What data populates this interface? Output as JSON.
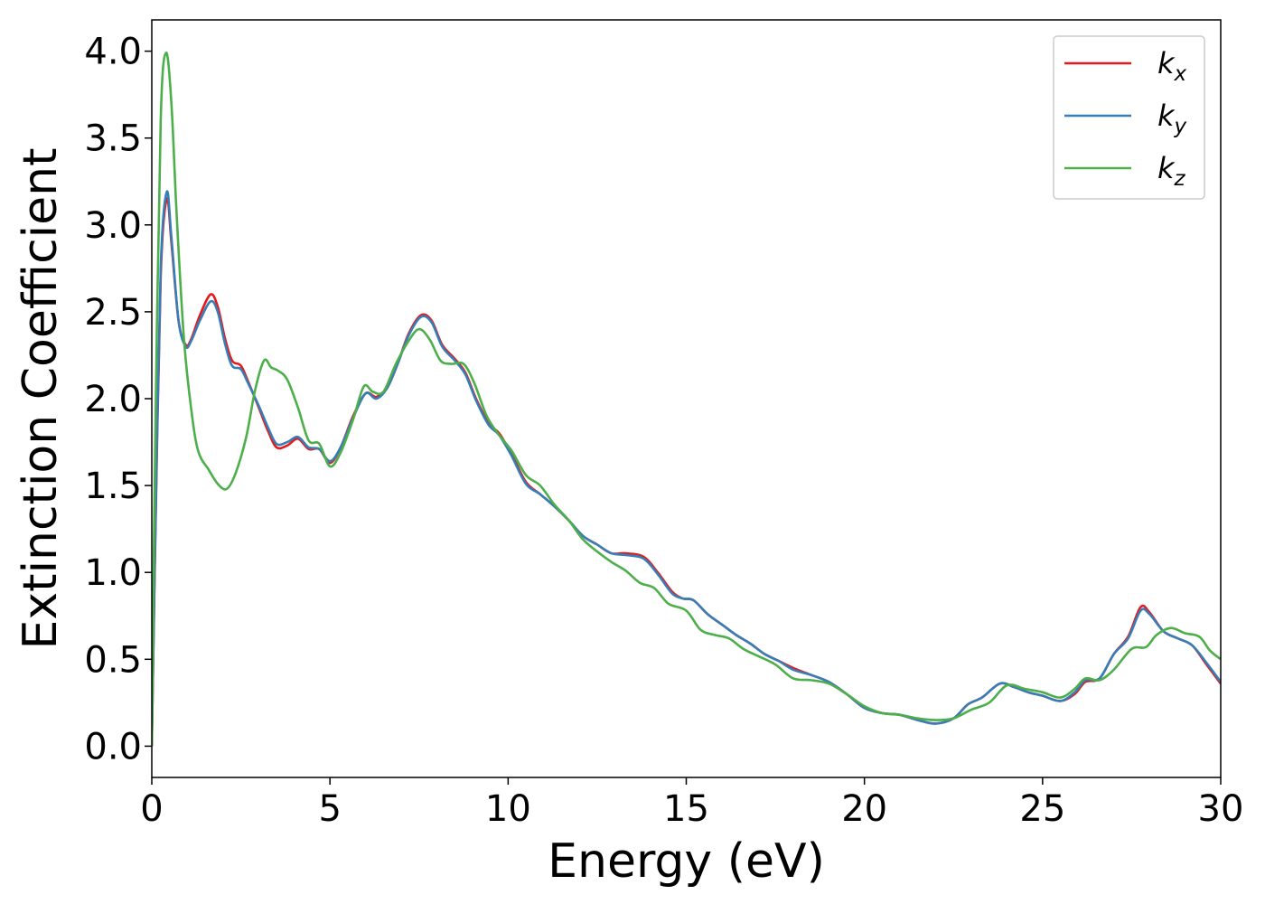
{
  "chart_data": {
    "type": "line",
    "title": "",
    "xlabel": "Energy (eV)",
    "ylabel": "Extinction Coefficient",
    "xlim": [
      0,
      30
    ],
    "ylim": [
      -0.18,
      4.18
    ],
    "xticks": [
      0,
      5,
      10,
      15,
      20,
      25,
      30
    ],
    "xtick_labels": [
      "0",
      "5",
      "10",
      "15",
      "20",
      "25",
      "30"
    ],
    "yticks": [
      0.0,
      0.5,
      1.0,
      1.5,
      2.0,
      2.5,
      3.0,
      3.5,
      4.0
    ],
    "ytick_labels": [
      "0.0",
      "0.5",
      "1.0",
      "1.5",
      "2.0",
      "2.5",
      "3.0",
      "3.5",
      "4.0"
    ],
    "grid": false,
    "legend_position": "top-right",
    "series": [
      {
        "name": "k",
        "subscript": "x",
        "color": "#e41a1c",
        "points": [
          [
            0,
            0
          ],
          [
            0.1,
            1.2
          ],
          [
            0.25,
            2.7
          ],
          [
            0.42,
            3.15
          ],
          [
            0.55,
            2.9
          ],
          [
            0.75,
            2.45
          ],
          [
            0.95,
            2.31
          ],
          [
            1.1,
            2.34
          ],
          [
            1.35,
            2.48
          ],
          [
            1.65,
            2.6
          ],
          [
            1.85,
            2.53
          ],
          [
            2.05,
            2.35
          ],
          [
            2.25,
            2.22
          ],
          [
            2.5,
            2.19
          ],
          [
            2.7,
            2.1
          ],
          [
            3.0,
            1.95
          ],
          [
            3.25,
            1.82
          ],
          [
            3.5,
            1.72
          ],
          [
            3.8,
            1.73
          ],
          [
            4.1,
            1.77
          ],
          [
            4.4,
            1.71
          ],
          [
            4.7,
            1.71
          ],
          [
            5.0,
            1.63
          ],
          [
            5.3,
            1.72
          ],
          [
            5.65,
            1.9
          ],
          [
            6.0,
            2.03
          ],
          [
            6.3,
            2.01
          ],
          [
            6.6,
            2.06
          ],
          [
            6.9,
            2.2
          ],
          [
            7.2,
            2.37
          ],
          [
            7.55,
            2.48
          ],
          [
            7.85,
            2.45
          ],
          [
            8.15,
            2.31
          ],
          [
            8.5,
            2.23
          ],
          [
            8.8,
            2.15
          ],
          [
            9.1,
            2.0
          ],
          [
            9.45,
            1.86
          ],
          [
            9.75,
            1.8
          ],
          [
            10.1,
            1.68
          ],
          [
            10.5,
            1.52
          ],
          [
            10.9,
            1.45
          ],
          [
            11.3,
            1.38
          ],
          [
            11.7,
            1.3
          ],
          [
            12.1,
            1.21
          ],
          [
            12.5,
            1.16
          ],
          [
            12.9,
            1.11
          ],
          [
            13.3,
            1.11
          ],
          [
            13.8,
            1.09
          ],
          [
            14.2,
            1.0
          ],
          [
            14.6,
            0.89
          ],
          [
            14.9,
            0.85
          ],
          [
            15.2,
            0.84
          ],
          [
            15.6,
            0.76
          ],
          [
            16.0,
            0.7
          ],
          [
            16.4,
            0.64
          ],
          [
            16.8,
            0.59
          ],
          [
            17.2,
            0.53
          ],
          [
            17.6,
            0.49
          ],
          [
            18.0,
            0.45
          ],
          [
            18.5,
            0.41
          ],
          [
            19.0,
            0.37
          ],
          [
            19.5,
            0.3
          ],
          [
            20.0,
            0.22
          ],
          [
            20.5,
            0.19
          ],
          [
            21.0,
            0.18
          ],
          [
            21.5,
            0.15
          ],
          [
            22.0,
            0.13
          ],
          [
            22.5,
            0.16
          ],
          [
            22.9,
            0.24
          ],
          [
            23.3,
            0.28
          ],
          [
            23.8,
            0.36
          ],
          [
            24.2,
            0.34
          ],
          [
            24.6,
            0.31
          ],
          [
            25.0,
            0.29
          ],
          [
            25.5,
            0.26
          ],
          [
            25.9,
            0.3
          ],
          [
            26.2,
            0.37
          ],
          [
            26.6,
            0.39
          ],
          [
            27.0,
            0.53
          ],
          [
            27.4,
            0.63
          ],
          [
            27.75,
            0.8
          ],
          [
            28.0,
            0.77
          ],
          [
            28.4,
            0.66
          ],
          [
            28.8,
            0.62
          ],
          [
            29.2,
            0.58
          ],
          [
            29.6,
            0.47
          ],
          [
            30.0,
            0.36
          ]
        ]
      },
      {
        "name": "k",
        "subscript": "y",
        "color": "#377eb8",
        "points": [
          [
            0,
            0
          ],
          [
            0.1,
            1.25
          ],
          [
            0.25,
            2.75
          ],
          [
            0.42,
            3.19
          ],
          [
            0.55,
            2.93
          ],
          [
            0.75,
            2.45
          ],
          [
            0.95,
            2.3
          ],
          [
            1.1,
            2.33
          ],
          [
            1.35,
            2.45
          ],
          [
            1.65,
            2.56
          ],
          [
            1.85,
            2.5
          ],
          [
            2.05,
            2.32
          ],
          [
            2.25,
            2.19
          ],
          [
            2.5,
            2.17
          ],
          [
            2.7,
            2.09
          ],
          [
            3.0,
            1.96
          ],
          [
            3.25,
            1.84
          ],
          [
            3.5,
            1.74
          ],
          [
            3.8,
            1.75
          ],
          [
            4.1,
            1.78
          ],
          [
            4.4,
            1.72
          ],
          [
            4.7,
            1.71
          ],
          [
            5.0,
            1.64
          ],
          [
            5.3,
            1.72
          ],
          [
            5.65,
            1.89
          ],
          [
            6.0,
            2.03
          ],
          [
            6.3,
            2.0
          ],
          [
            6.6,
            2.06
          ],
          [
            6.9,
            2.2
          ],
          [
            7.2,
            2.36
          ],
          [
            7.55,
            2.47
          ],
          [
            7.85,
            2.44
          ],
          [
            8.15,
            2.3
          ],
          [
            8.5,
            2.22
          ],
          [
            8.8,
            2.14
          ],
          [
            9.1,
            1.99
          ],
          [
            9.45,
            1.85
          ],
          [
            9.75,
            1.79
          ],
          [
            10.1,
            1.67
          ],
          [
            10.5,
            1.51
          ],
          [
            10.9,
            1.45
          ],
          [
            11.3,
            1.38
          ],
          [
            11.7,
            1.3
          ],
          [
            12.1,
            1.21
          ],
          [
            12.5,
            1.16
          ],
          [
            12.9,
            1.11
          ],
          [
            13.3,
            1.1
          ],
          [
            13.8,
            1.08
          ],
          [
            14.2,
            0.99
          ],
          [
            14.6,
            0.88
          ],
          [
            14.9,
            0.85
          ],
          [
            15.2,
            0.84
          ],
          [
            15.6,
            0.76
          ],
          [
            16.0,
            0.7
          ],
          [
            16.4,
            0.64
          ],
          [
            16.8,
            0.59
          ],
          [
            17.2,
            0.53
          ],
          [
            17.6,
            0.49
          ],
          [
            18.0,
            0.44
          ],
          [
            18.5,
            0.41
          ],
          [
            19.0,
            0.37
          ],
          [
            19.5,
            0.3
          ],
          [
            20.0,
            0.22
          ],
          [
            20.5,
            0.19
          ],
          [
            21.0,
            0.18
          ],
          [
            21.5,
            0.15
          ],
          [
            22.0,
            0.13
          ],
          [
            22.5,
            0.16
          ],
          [
            22.9,
            0.24
          ],
          [
            23.3,
            0.28
          ],
          [
            23.8,
            0.36
          ],
          [
            24.2,
            0.34
          ],
          [
            24.6,
            0.31
          ],
          [
            25.0,
            0.29
          ],
          [
            25.5,
            0.26
          ],
          [
            25.9,
            0.31
          ],
          [
            26.2,
            0.38
          ],
          [
            26.6,
            0.39
          ],
          [
            27.0,
            0.53
          ],
          [
            27.4,
            0.62
          ],
          [
            27.75,
            0.78
          ],
          [
            28.0,
            0.76
          ],
          [
            28.4,
            0.66
          ],
          [
            28.8,
            0.62
          ],
          [
            29.2,
            0.58
          ],
          [
            29.6,
            0.48
          ],
          [
            30.0,
            0.37
          ]
        ]
      },
      {
        "name": "k",
        "subscript": "z",
        "color": "#4daf4a",
        "points": [
          [
            0,
            0
          ],
          [
            0.1,
            1.8
          ],
          [
            0.25,
            3.6
          ],
          [
            0.4,
            3.99
          ],
          [
            0.55,
            3.7
          ],
          [
            0.7,
            3.05
          ],
          [
            0.9,
            2.35
          ],
          [
            1.1,
            1.95
          ],
          [
            1.3,
            1.7
          ],
          [
            1.6,
            1.59
          ],
          [
            1.85,
            1.51
          ],
          [
            2.1,
            1.48
          ],
          [
            2.35,
            1.57
          ],
          [
            2.65,
            1.78
          ],
          [
            2.9,
            2.05
          ],
          [
            3.15,
            2.22
          ],
          [
            3.35,
            2.18
          ],
          [
            3.55,
            2.16
          ],
          [
            3.8,
            2.11
          ],
          [
            4.1,
            1.95
          ],
          [
            4.4,
            1.76
          ],
          [
            4.7,
            1.74
          ],
          [
            5.0,
            1.61
          ],
          [
            5.3,
            1.69
          ],
          [
            5.65,
            1.88
          ],
          [
            5.95,
            2.07
          ],
          [
            6.2,
            2.04
          ],
          [
            6.5,
            2.04
          ],
          [
            6.85,
            2.2
          ],
          [
            7.2,
            2.33
          ],
          [
            7.5,
            2.4
          ],
          [
            7.8,
            2.34
          ],
          [
            8.1,
            2.22
          ],
          [
            8.4,
            2.2
          ],
          [
            8.75,
            2.2
          ],
          [
            9.05,
            2.09
          ],
          [
            9.4,
            1.9
          ],
          [
            9.75,
            1.79
          ],
          [
            10.1,
            1.7
          ],
          [
            10.5,
            1.56
          ],
          [
            10.9,
            1.5
          ],
          [
            11.3,
            1.39
          ],
          [
            11.7,
            1.3
          ],
          [
            12.1,
            1.19
          ],
          [
            12.5,
            1.12
          ],
          [
            12.9,
            1.06
          ],
          [
            13.3,
            1.01
          ],
          [
            13.7,
            0.94
          ],
          [
            14.1,
            0.91
          ],
          [
            14.5,
            0.82
          ],
          [
            15.0,
            0.78
          ],
          [
            15.4,
            0.67
          ],
          [
            15.8,
            0.64
          ],
          [
            16.2,
            0.62
          ],
          [
            16.6,
            0.56
          ],
          [
            17.0,
            0.52
          ],
          [
            17.5,
            0.47
          ],
          [
            18.0,
            0.39
          ],
          [
            18.5,
            0.38
          ],
          [
            19.0,
            0.36
          ],
          [
            19.5,
            0.3
          ],
          [
            20.0,
            0.23
          ],
          [
            20.5,
            0.19
          ],
          [
            21.0,
            0.18
          ],
          [
            21.5,
            0.16
          ],
          [
            22.0,
            0.15
          ],
          [
            22.5,
            0.16
          ],
          [
            23.0,
            0.21
          ],
          [
            23.5,
            0.25
          ],
          [
            24.0,
            0.35
          ],
          [
            24.5,
            0.33
          ],
          [
            25.0,
            0.31
          ],
          [
            25.5,
            0.28
          ],
          [
            25.9,
            0.33
          ],
          [
            26.2,
            0.39
          ],
          [
            26.6,
            0.38
          ],
          [
            27.0,
            0.44
          ],
          [
            27.5,
            0.56
          ],
          [
            27.9,
            0.57
          ],
          [
            28.2,
            0.64
          ],
          [
            28.6,
            0.68
          ],
          [
            29.0,
            0.65
          ],
          [
            29.4,
            0.63
          ],
          [
            29.7,
            0.55
          ],
          [
            30.0,
            0.5
          ]
        ]
      }
    ]
  }
}
